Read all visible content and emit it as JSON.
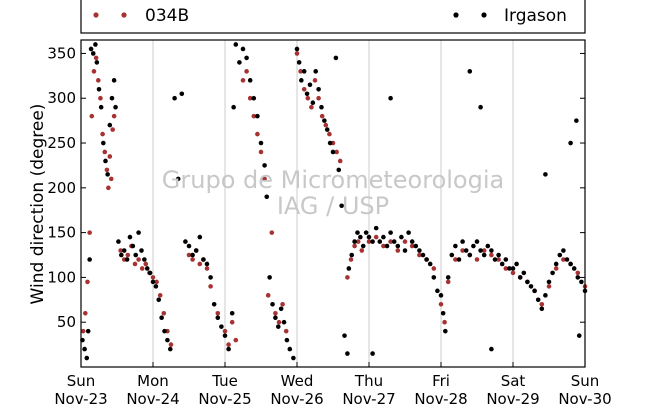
{
  "chart_data": {
    "type": "scatter",
    "title": "",
    "xlabel": "",
    "ylabel": "Wind direction (degree)",
    "ylim": [
      0,
      365
    ],
    "yticks": [
      50,
      100,
      150,
      200,
      250,
      300,
      350
    ],
    "xlim": [
      0,
      7
    ],
    "xticks": [
      {
        "x": 0,
        "day": "Sun",
        "date": "Nov-23"
      },
      {
        "x": 1,
        "day": "Mon",
        "date": "Nov-24"
      },
      {
        "x": 2,
        "day": "Tue",
        "date": "Nov-25"
      },
      {
        "x": 3,
        "day": "Wed",
        "date": "Nov-26"
      },
      {
        "x": 4,
        "day": "Thu",
        "date": "Nov-27"
      },
      {
        "x": 5,
        "day": "Fri",
        "date": "Nov-28"
      },
      {
        "x": 6,
        "day": "Sat",
        "date": "Nov-29"
      },
      {
        "x": 7,
        "day": "Sun",
        "date": "Nov-30"
      }
    ],
    "grid": "vertical",
    "legend_position": "top",
    "watermark": [
      "Grupo de Micrometeorologia",
      "IAG / USP"
    ],
    "series": [
      {
        "name": "034B",
        "color": "#a83232",
        "points": [
          [
            0.03,
            40
          ],
          [
            0.06,
            60
          ],
          [
            0.09,
            95
          ],
          [
            0.12,
            150
          ],
          [
            0.15,
            280
          ],
          [
            0.18,
            330
          ],
          [
            0.21,
            345
          ],
          [
            0.24,
            320
          ],
          [
            0.27,
            300
          ],
          [
            0.3,
            260
          ],
          [
            0.33,
            240
          ],
          [
            0.36,
            220
          ],
          [
            0.38,
            200
          ],
          [
            0.4,
            235
          ],
          [
            0.42,
            210
          ],
          [
            0.44,
            265
          ],
          [
            0.46,
            280
          ],
          [
            0.55,
            130
          ],
          [
            0.6,
            120
          ],
          [
            0.65,
            125
          ],
          [
            0.7,
            135
          ],
          [
            0.75,
            115
          ],
          [
            0.8,
            120
          ],
          [
            0.85,
            110
          ],
          [
            0.9,
            115
          ],
          [
            0.95,
            105
          ],
          [
            1.0,
            100
          ],
          [
            1.05,
            95
          ],
          [
            1.1,
            80
          ],
          [
            1.15,
            60
          ],
          [
            1.2,
            40
          ],
          [
            1.25,
            25
          ],
          [
            1.5,
            125
          ],
          [
            1.55,
            120
          ],
          [
            1.6,
            130
          ],
          [
            1.65,
            115
          ],
          [
            1.7,
            120
          ],
          [
            1.75,
            110
          ],
          [
            1.8,
            90
          ],
          [
            1.9,
            60
          ],
          [
            2.0,
            40
          ],
          [
            2.05,
            25
          ],
          [
            2.1,
            50
          ],
          [
            2.15,
            30
          ],
          [
            2.25,
            320
          ],
          [
            2.3,
            330
          ],
          [
            2.35,
            300
          ],
          [
            2.4,
            280
          ],
          [
            2.45,
            260
          ],
          [
            2.5,
            240
          ],
          [
            2.55,
            210
          ],
          [
            2.6,
            80
          ],
          [
            2.65,
            150
          ],
          [
            2.7,
            60
          ],
          [
            2.75,
            50
          ],
          [
            2.8,
            70
          ],
          [
            2.85,
            40
          ],
          [
            3.0,
            350
          ],
          [
            3.05,
            330
          ],
          [
            3.1,
            310
          ],
          [
            3.15,
            300
          ],
          [
            3.2,
            290
          ],
          [
            3.25,
            320
          ],
          [
            3.3,
            300
          ],
          [
            3.35,
            280
          ],
          [
            3.4,
            270
          ],
          [
            3.45,
            260
          ],
          [
            3.5,
            250
          ],
          [
            3.55,
            240
          ],
          [
            3.6,
            230
          ],
          [
            3.7,
            100
          ],
          [
            3.75,
            120
          ],
          [
            3.8,
            135
          ],
          [
            3.85,
            140
          ],
          [
            3.9,
            130
          ],
          [
            4.0,
            140
          ],
          [
            4.1,
            145
          ],
          [
            4.2,
            135
          ],
          [
            4.3,
            140
          ],
          [
            4.4,
            130
          ],
          [
            4.5,
            140
          ],
          [
            4.6,
            135
          ],
          [
            4.7,
            125
          ],
          [
            4.8,
            120
          ],
          [
            4.9,
            110
          ],
          [
            5.0,
            70
          ],
          [
            5.05,
            50
          ],
          [
            5.1,
            95
          ],
          [
            5.2,
            120
          ],
          [
            5.3,
            130
          ],
          [
            5.4,
            125
          ],
          [
            5.5,
            120
          ],
          [
            5.6,
            130
          ],
          [
            5.7,
            125
          ],
          [
            5.8,
            120
          ],
          [
            5.9,
            110
          ],
          [
            6.0,
            105
          ],
          [
            6.1,
            100
          ],
          [
            6.2,
            95
          ],
          [
            6.3,
            85
          ],
          [
            6.4,
            70
          ],
          [
            6.5,
            90
          ],
          [
            6.6,
            110
          ],
          [
            6.7,
            120
          ],
          [
            6.8,
            115
          ],
          [
            6.9,
            105
          ],
          [
            7.0,
            90
          ]
        ]
      },
      {
        "name": "Irgason",
        "color": "#000000",
        "points": [
          [
            0.02,
            30
          ],
          [
            0.05,
            20
          ],
          [
            0.08,
            10
          ],
          [
            0.1,
            40
          ],
          [
            0.12,
            120
          ],
          [
            0.14,
            355
          ],
          [
            0.17,
            350
          ],
          [
            0.2,
            360
          ],
          [
            0.22,
            340
          ],
          [
            0.25,
            310
          ],
          [
            0.28,
            290
          ],
          [
            0.31,
            250
          ],
          [
            0.34,
            230
          ],
          [
            0.37,
            215
          ],
          [
            0.4,
            270
          ],
          [
            0.43,
            300
          ],
          [
            0.46,
            320
          ],
          [
            0.48,
            290
          ],
          [
            0.52,
            140
          ],
          [
            0.56,
            125
          ],
          [
            0.6,
            130
          ],
          [
            0.64,
            120
          ],
          [
            0.68,
            145
          ],
          [
            0.72,
            135
          ],
          [
            0.76,
            125
          ],
          [
            0.8,
            150
          ],
          [
            0.84,
            130
          ],
          [
            0.88,
            120
          ],
          [
            0.92,
            110
          ],
          [
            0.96,
            105
          ],
          [
            1.0,
            95
          ],
          [
            1.04,
            90
          ],
          [
            1.08,
            75
          ],
          [
            1.12,
            55
          ],
          [
            1.16,
            40
          ],
          [
            1.2,
            30
          ],
          [
            1.24,
            20
          ],
          [
            1.3,
            300
          ],
          [
            1.35,
            210
          ],
          [
            1.4,
            305
          ],
          [
            1.45,
            140
          ],
          [
            1.5,
            135
          ],
          [
            1.55,
            125
          ],
          [
            1.6,
            130
          ],
          [
            1.65,
            145
          ],
          [
            1.7,
            120
          ],
          [
            1.75,
            115
          ],
          [
            1.8,
            100
          ],
          [
            1.85,
            70
          ],
          [
            1.9,
            55
          ],
          [
            1.95,
            45
          ],
          [
            2.0,
            35
          ],
          [
            2.05,
            20
          ],
          [
            2.1,
            60
          ],
          [
            2.12,
            290
          ],
          [
            2.15,
            360
          ],
          [
            2.2,
            340
          ],
          [
            2.25,
            355
          ],
          [
            2.3,
            345
          ],
          [
            2.35,
            320
          ],
          [
            2.4,
            300
          ],
          [
            2.45,
            280
          ],
          [
            2.5,
            250
          ],
          [
            2.55,
            225
          ],
          [
            2.58,
            190
          ],
          [
            2.62,
            100
          ],
          [
            2.66,
            70
          ],
          [
            2.7,
            55
          ],
          [
            2.74,
            45
          ],
          [
            2.78,
            65
          ],
          [
            2.82,
            50
          ],
          [
            2.86,
            30
          ],
          [
            2.9,
            20
          ],
          [
            2.95,
            10
          ],
          [
            3.0,
            355
          ],
          [
            3.03,
            340
          ],
          [
            3.06,
            320
          ],
          [
            3.1,
            330
          ],
          [
            3.14,
            305
          ],
          [
            3.18,
            315
          ],
          [
            3.22,
            295
          ],
          [
            3.26,
            330
          ],
          [
            3.3,
            310
          ],
          [
            3.34,
            290
          ],
          [
            3.38,
            275
          ],
          [
            3.42,
            265
          ],
          [
            3.46,
            250
          ],
          [
            3.5,
            240
          ],
          [
            3.54,
            345
          ],
          [
            3.58,
            220
          ],
          [
            3.62,
            180
          ],
          [
            3.66,
            35
          ],
          [
            3.7,
            15
          ],
          [
            3.72,
            110
          ],
          [
            3.76,
            125
          ],
          [
            3.8,
            140
          ],
          [
            3.84,
            150
          ],
          [
            3.88,
            145
          ],
          [
            3.92,
            135
          ],
          [
            3.96,
            150
          ],
          [
            4.0,
            145
          ],
          [
            4.05,
            140
          ],
          [
            4.1,
            155
          ],
          [
            4.15,
            140
          ],
          [
            4.2,
            145
          ],
          [
            4.25,
            135
          ],
          [
            4.3,
            150
          ],
          [
            4.35,
            140
          ],
          [
            4.4,
            135
          ],
          [
            4.45,
            145
          ],
          [
            4.5,
            130
          ],
          [
            4.55,
            150
          ],
          [
            4.6,
            140
          ],
          [
            4.65,
            135
          ],
          [
            4.7,
            130
          ],
          [
            4.75,
            125
          ],
          [
            4.8,
            120
          ],
          [
            4.85,
            115
          ],
          [
            4.9,
            100
          ],
          [
            4.95,
            85
          ],
          [
            4.05,
            15
          ],
          [
            4.3,
            300
          ],
          [
            5.0,
            80
          ],
          [
            5.03,
            60
          ],
          [
            5.06,
            40
          ],
          [
            5.1,
            100
          ],
          [
            5.15,
            125
          ],
          [
            5.2,
            135
          ],
          [
            5.25,
            120
          ],
          [
            5.3,
            140
          ],
          [
            5.35,
            130
          ],
          [
            5.4,
            125
          ],
          [
            5.45,
            135
          ],
          [
            5.5,
            140
          ],
          [
            5.55,
            130
          ],
          [
            5.6,
            125
          ],
          [
            5.65,
            135
          ],
          [
            5.7,
            130
          ],
          [
            5.75,
            120
          ],
          [
            5.8,
            125
          ],
          [
            5.85,
            115
          ],
          [
            5.9,
            120
          ],
          [
            5.95,
            110
          ],
          [
            5.4,
            330
          ],
          [
            5.55,
            290
          ],
          [
            5.7,
            20
          ],
          [
            6.0,
            110
          ],
          [
            6.05,
            115
          ],
          [
            6.1,
            100
          ],
          [
            6.15,
            105
          ],
          [
            6.2,
            95
          ],
          [
            6.25,
            90
          ],
          [
            6.3,
            85
          ],
          [
            6.35,
            75
          ],
          [
            6.4,
            65
          ],
          [
            6.45,
            80
          ],
          [
            6.5,
            95
          ],
          [
            6.55,
            105
          ],
          [
            6.6,
            115
          ],
          [
            6.65,
            125
          ],
          [
            6.7,
            130
          ],
          [
            6.75,
            120
          ],
          [
            6.8,
            115
          ],
          [
            6.85,
            110
          ],
          [
            6.9,
            100
          ],
          [
            6.95,
            95
          ],
          [
            7.0,
            85
          ],
          [
            6.45,
            215
          ],
          [
            6.8,
            250
          ],
          [
            6.88,
            275
          ],
          [
            6.92,
            35
          ]
        ]
      }
    ]
  }
}
